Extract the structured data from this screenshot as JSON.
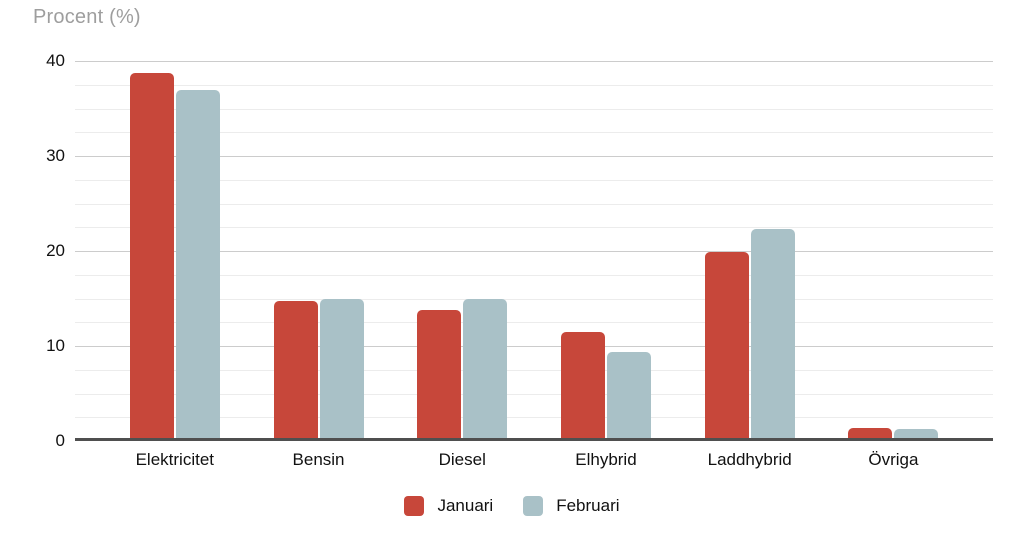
{
  "chart_data": {
    "type": "bar",
    "title": "Procent (%)",
    "xlabel": "",
    "ylabel": "Procent (%)",
    "categories": [
      "Elektricitet",
      "Bensin",
      "Diesel",
      "Elhybrid",
      "Laddhybrid",
      "Övriga"
    ],
    "series": [
      {
        "name": "Januari",
        "color": "#c7473a",
        "values": [
          38.7,
          14.7,
          13.8,
          11.5,
          19.9,
          1.4
        ]
      },
      {
        "name": "Februari",
        "color": "#a9c1c7",
        "values": [
          37.0,
          14.9,
          14.9,
          9.4,
          22.3,
          1.3
        ]
      }
    ],
    "ylim": [
      0,
      40
    ],
    "yticks": [
      0,
      10,
      20,
      30,
      40
    ],
    "minor_tick_step": 2.5,
    "grid": true,
    "legend_position": "bottom",
    "colors": {
      "background": "#ffffff",
      "title_text": "#9e9e9e",
      "label_text": "#111111",
      "axis_line": "#4f4f4f",
      "major_grid": "#cccccc",
      "minor_grid": "#ececec"
    }
  }
}
